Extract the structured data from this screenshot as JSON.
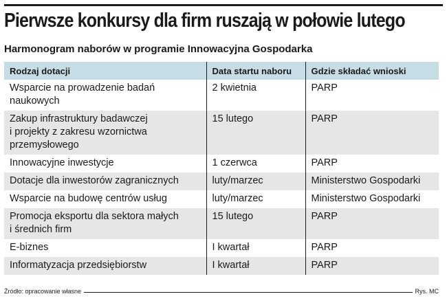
{
  "title": "Pierwsze konkursy dla firm ruszają w połowie lutego",
  "subtitle": "Harmonogram naborów w programie Innowacyjna Gospodarka",
  "table": {
    "headers": [
      "Rodzaj dotacji",
      "Data startu naboru",
      "Gdzie składać wnioski"
    ],
    "rows": [
      {
        "kind": "Wsparcie na prowadzenie badań\nnaukowych",
        "start": "2 kwietnia",
        "where": "PARP"
      },
      {
        "kind": "Zakup infrastruktury badawczej\ni projekty z zakresu wzornictwa\nprzemysłowego",
        "start": "15 lutego",
        "where": "PARP"
      },
      {
        "kind": "Innowacyjne inwestycje",
        "start": "1 czerwca",
        "where": "PARP"
      },
      {
        "kind": "Dotacje dla inwestorów zagranicznych",
        "start": "luty/marzec",
        "where": "Ministerstwo Gospodarki"
      },
      {
        "kind": "Wsparcie na budowę centrów usług",
        "start": "luty/marzec",
        "where": "Ministerstwo Gospodarki"
      },
      {
        "kind": "Promocja eksportu dla sektora małych\ni średnich firm",
        "start": "15 lutego",
        "where": "PARP"
      },
      {
        "kind": "E-biznes",
        "start": "I kwartał",
        "where": "PARP"
      },
      {
        "kind": "Informatyzacja przedsiębiorstw",
        "start": "I kwartał",
        "where": "PARP"
      }
    ]
  },
  "footer": {
    "source": "Źródło: opracowanie własne",
    "credit": "Rys. MC"
  },
  "colors": {
    "header_bg": "#c6dde5",
    "shaded_row": "#e6e6e6",
    "rule": "#1a1a1a"
  }
}
